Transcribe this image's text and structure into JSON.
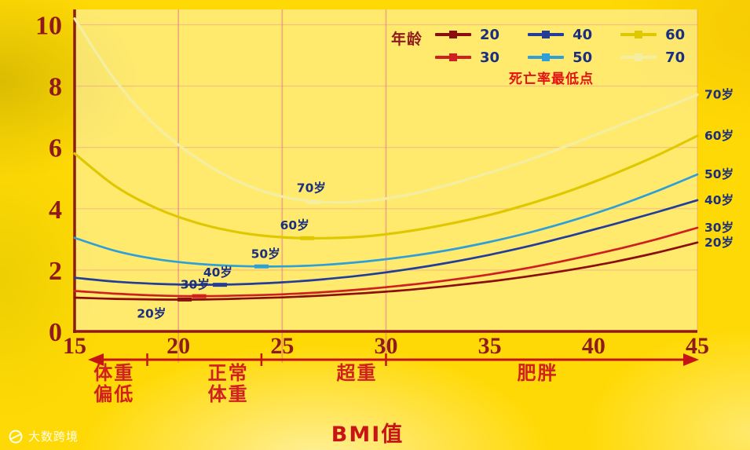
{
  "legend": {
    "title": "年龄",
    "items": [
      {
        "label": "20",
        "color": "#8B0E0E"
      },
      {
        "label": "30",
        "color": "#CE2020"
      },
      {
        "label": "40",
        "color": "#233E99"
      },
      {
        "label": "50",
        "color": "#2F9FD8"
      },
      {
        "label": "60",
        "color": "#E0C800"
      },
      {
        "label": "70",
        "color": "#F4EEA2"
      }
    ],
    "note": "死亡率最低点"
  },
  "x_axis": {
    "title": "BMI值",
    "categories": [
      {
        "label": "体重\n偏低",
        "center_bmi": 16.9
      },
      {
        "label": "正常\n体重",
        "center_bmi": 22.4
      },
      {
        "label": "超重",
        "center_bmi": 28.6
      },
      {
        "label": "肥胖",
        "center_bmi": 37.3
      }
    ],
    "boundaries_bmi": [
      18.5,
      24,
      30
    ]
  },
  "watermark": {
    "text": "大数跨境"
  },
  "chart_data": {
    "type": "line",
    "title": "",
    "xlabel": "BMI值",
    "ylabel": "",
    "xlim": [
      15,
      45
    ],
    "ylim": [
      0,
      10.5
    ],
    "x_ticks": [
      15,
      20,
      25,
      30,
      35,
      40,
      45
    ],
    "y_ticks": [
      0,
      2,
      4,
      6,
      8,
      10
    ],
    "grid_x": [
      20,
      25,
      30
    ],
    "grid_on": true,
    "legend_position": "top",
    "axis_color": "#8F1A1A",
    "grid_color": "rgba(228,110,135,0.55)",
    "annotation_color": "#1B2F7E",
    "arrow_color": "#C41414",
    "x": [
      15,
      17,
      19,
      21,
      23,
      25,
      27,
      29,
      31,
      33,
      35,
      37,
      39,
      41,
      43,
      45
    ],
    "series": [
      {
        "name": "20",
        "label": "20岁",
        "color": "#8B0E0E",
        "values": [
          1.1,
          1.06,
          1.04,
          1.04,
          1.07,
          1.11,
          1.17,
          1.25,
          1.35,
          1.48,
          1.63,
          1.81,
          2.02,
          2.27,
          2.56,
          2.9
        ],
        "min_point": {
          "x": 20.3,
          "y": 1.04
        },
        "label_pos": {
          "x": 18.7,
          "y": 0.58
        }
      },
      {
        "name": "30",
        "label": "30岁",
        "color": "#CE2020",
        "values": [
          1.32,
          1.23,
          1.17,
          1.15,
          1.17,
          1.21,
          1.28,
          1.38,
          1.51,
          1.67,
          1.86,
          2.09,
          2.36,
          2.66,
          3.0,
          3.38
        ],
        "min_point": {
          "x": 21.0,
          "y": 1.15
        },
        "label_pos": {
          "x": 20.8,
          "y": 1.52
        }
      },
      {
        "name": "40",
        "label": "40岁",
        "color": "#233E99",
        "values": [
          1.75,
          1.62,
          1.55,
          1.52,
          1.54,
          1.6,
          1.7,
          1.84,
          2.02,
          2.24,
          2.5,
          2.8,
          3.14,
          3.5,
          3.88,
          4.28
        ],
        "min_point": {
          "x": 22.0,
          "y": 1.52
        },
        "label_pos": {
          "x": 21.9,
          "y": 1.92
        }
      },
      {
        "name": "50",
        "label": "50岁",
        "color": "#2F9FD8",
        "values": [
          3.05,
          2.62,
          2.35,
          2.2,
          2.13,
          2.12,
          2.17,
          2.28,
          2.44,
          2.65,
          2.92,
          3.24,
          3.62,
          4.06,
          4.56,
          5.12
        ],
        "min_point": {
          "x": 24.0,
          "y": 2.12
        },
        "label_pos": {
          "x": 24.2,
          "y": 2.52
        }
      },
      {
        "name": "60",
        "label": "60岁",
        "color": "#E0C800",
        "values": [
          5.8,
          4.72,
          4.0,
          3.52,
          3.22,
          3.07,
          3.04,
          3.1,
          3.26,
          3.5,
          3.8,
          4.18,
          4.62,
          5.14,
          5.72,
          6.38
        ],
        "min_point": {
          "x": 26.2,
          "y": 3.04
        },
        "label_pos": {
          "x": 25.6,
          "y": 3.46
        }
      },
      {
        "name": "70",
        "label": "70岁",
        "color": "#F4EEA2",
        "values": [
          10.2,
          8.15,
          6.65,
          5.6,
          4.85,
          4.4,
          4.22,
          4.25,
          4.45,
          4.78,
          5.18,
          5.62,
          6.12,
          6.65,
          7.18,
          7.72
        ],
        "min_point": {
          "x": 26.5,
          "y": 4.22
        },
        "label_pos": {
          "x": 26.4,
          "y": 4.68
        }
      }
    ]
  }
}
